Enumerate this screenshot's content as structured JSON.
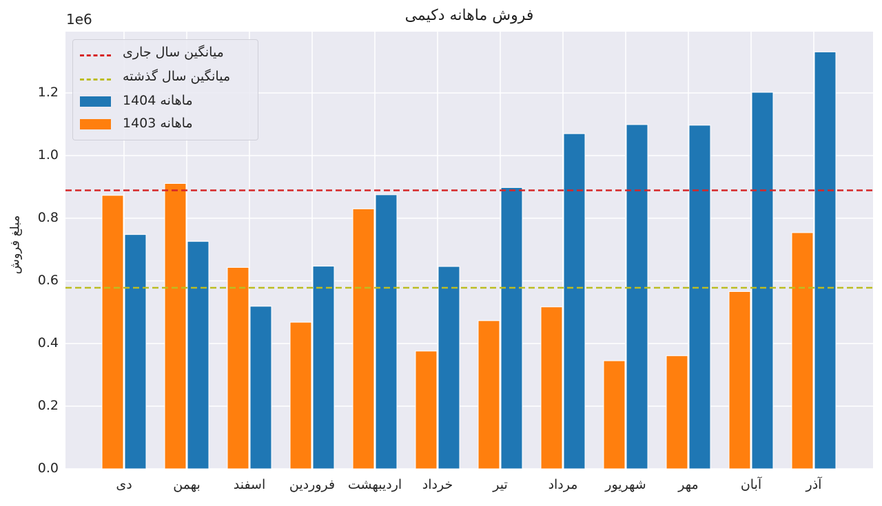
{
  "chart_data": {
    "type": "bar",
    "title": "فروش ماهانه  دکیمی",
    "xlabel": "",
    "ylabel": "مبلغ فروش",
    "y_scale_exponent": "1e6",
    "ylim": [
      0,
      1.4
    ],
    "yticks": [
      "0.0",
      "0.2",
      "0.4",
      "0.6",
      "0.8",
      "1.0",
      "1.2"
    ],
    "grid": true,
    "legend_position": "upper left",
    "categories": [
      "دی",
      "بهمن",
      "اسفند",
      "فروردین",
      "اردیبهشت",
      "خرداد",
      "تیر",
      "مرداد",
      "شهریور",
      "مهر",
      "آبان",
      "آذر"
    ],
    "series": [
      {
        "name": "ماهانه 1403",
        "color": "#ff7f0e",
        "values": [
          873000,
          911000,
          643000,
          468000,
          830000,
          376000,
          473000,
          517000,
          345000,
          361000,
          566000,
          754000
        ]
      },
      {
        "name": "ماهانه 1404",
        "color": "#1f77b4",
        "values": [
          748000,
          726000,
          519000,
          647000,
          875000,
          646000,
          898000,
          1070000,
          1099000,
          1097000,
          1202000,
          1331000
        ]
      }
    ],
    "reference_lines": [
      {
        "name": "میانگین سال جاری",
        "value": 889000,
        "color": "#d62728",
        "style": "dashed"
      },
      {
        "name": "میانگین سال گذشته",
        "value": 578000,
        "color": "#bcbd22",
        "style": "dashed"
      }
    ]
  },
  "legend": {
    "items": [
      {
        "label": "میانگین سال جاری",
        "kind": "line",
        "color": "#d62728"
      },
      {
        "label": "میانگین سال گذشته",
        "kind": "line",
        "color": "#bcbd22"
      },
      {
        "label": "ماهانه 1404",
        "kind": "patch",
        "color": "#1f77b4"
      },
      {
        "label": "ماهانه 1403",
        "kind": "patch",
        "color": "#ff7f0e"
      }
    ]
  },
  "colors": {
    "axes_bg": "#eaeaf2",
    "grid": "#ffffff",
    "text": "#262626"
  }
}
